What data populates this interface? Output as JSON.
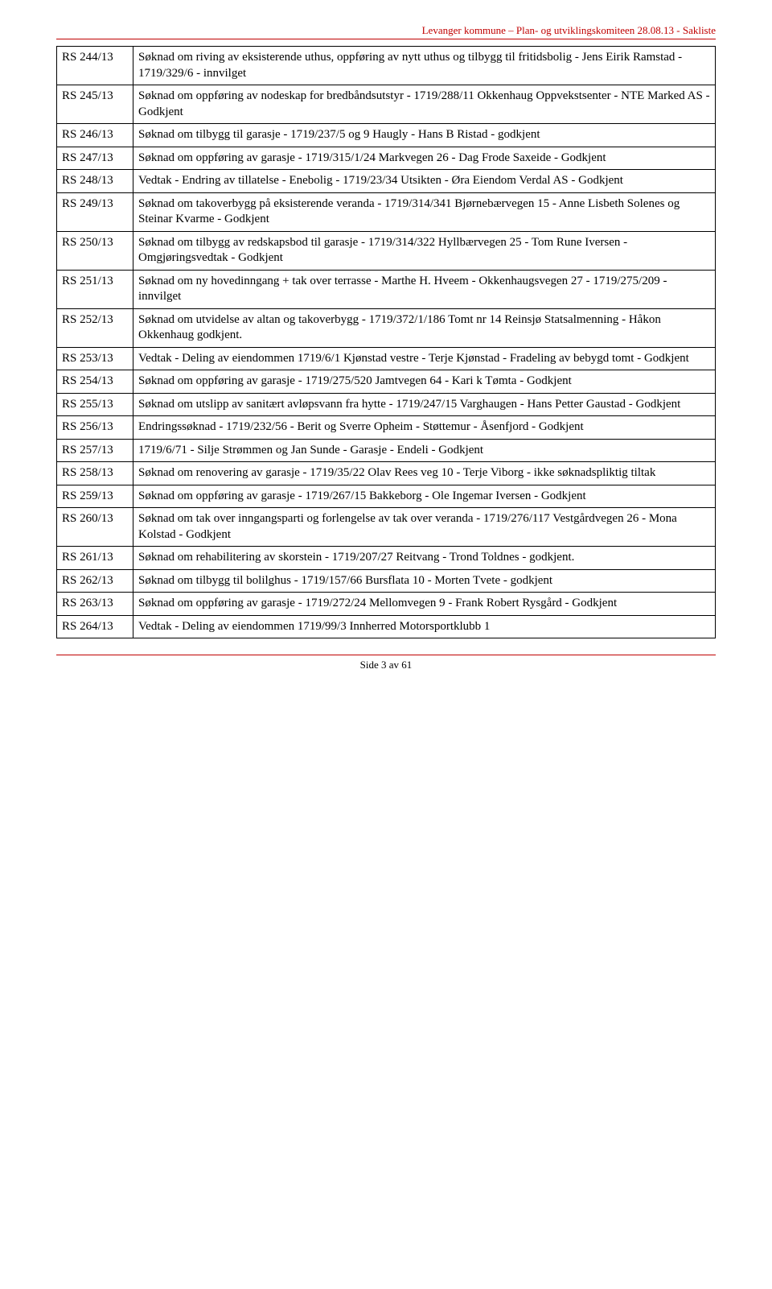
{
  "header_text": "Levanger kommune – Plan- og utviklingskomiteen 28.08.13 - Sakliste",
  "footer_text": "Side 3 av 61",
  "rows": [
    {
      "ref": "RS 244/13",
      "desc": "Søknad om riving av eksisterende uthus, oppføring av nytt uthus og tilbygg til fritidsbolig - Jens Eirik Ramstad - 1719/329/6 - innvilget"
    },
    {
      "ref": "RS 245/13",
      "desc": "Søknad om oppføring av nodeskap for bredbåndsutstyr - 1719/288/11 Okkenhaug Oppvekstsenter - NTE Marked AS - Godkjent"
    },
    {
      "ref": "RS 246/13",
      "desc": "Søknad om tilbygg til garasje - 1719/237/5 og 9 Haugly - Hans B Ristad - godkjent"
    },
    {
      "ref": "RS 247/13",
      "desc": "Søknad om oppføring av garasje - 1719/315/1/24 Markvegen 26 - Dag Frode Saxeide - Godkjent"
    },
    {
      "ref": "RS 248/13",
      "desc": "Vedtak - Endring av tillatelse - Enebolig - 1719/23/34 Utsikten - Øra Eiendom Verdal AS - Godkjent"
    },
    {
      "ref": "RS 249/13",
      "desc": "Søknad om takoverbygg på eksisterende veranda - 1719/314/341 Bjørnebærvegen 15 - Anne Lisbeth Solenes og Steinar Kvarme - Godkjent"
    },
    {
      "ref": "RS 250/13",
      "desc": "Søknad om tilbygg av redskapsbod til garasje - 1719/314/322 Hyllbærvegen 25 - Tom Rune Iversen - Omgjøringsvedtak - Godkjent"
    },
    {
      "ref": "RS 251/13",
      "desc": "Søknad om ny hovedinngang + tak over terrasse  - Marthe H. Hveem - Okkenhaugsvegen 27 - 1719/275/209 - innvilget"
    },
    {
      "ref": "RS 252/13",
      "desc": "Søknad om utvidelse av altan og takoverbygg - 1719/372/1/186 Tomt nr 14 Reinsjø Statsalmenning - Håkon Okkenhaug  godkjent."
    },
    {
      "ref": "RS 253/13",
      "desc": "Vedtak - Deling av eiendommen 1719/6/1 Kjønstad vestre - Terje Kjønstad - Fradeling av bebygd tomt - Godkjent"
    },
    {
      "ref": "RS 254/13",
      "desc": "Søknad om oppføring av garasje - 1719/275/520 Jamtvegen 64 - Kari k Tømta - Godkjent"
    },
    {
      "ref": "RS 255/13",
      "desc": "Søknad om utslipp av sanitært avløpsvann fra hytte - 1719/247/15 Varghaugen - Hans Petter Gaustad - Godkjent"
    },
    {
      "ref": "RS 256/13",
      "desc": "Endringssøknad - 1719/232/56 - Berit og Sverre Opheim - Støttemur - Åsenfjord - Godkjent"
    },
    {
      "ref": "RS 257/13",
      "desc": "1719/6/71 - Silje Strømmen og Jan Sunde - Garasje - Endeli - Godkjent"
    },
    {
      "ref": "RS 258/13",
      "desc": "Søknad om renovering av garasje  - 1719/35/22 Olav Rees veg 10 - Terje Viborg - ikke søknadspliktig tiltak"
    },
    {
      "ref": "RS 259/13",
      "desc": "Søknad om oppføring av garasje - 1719/267/15 Bakkeborg - Ole Ingemar Iversen - Godkjent"
    },
    {
      "ref": "RS 260/13",
      "desc": "Søknad om tak over inngangsparti og forlengelse av tak over veranda - 1719/276/117 Vestgårdvegen 26 - Mona Kolstad - Godkjent"
    },
    {
      "ref": "RS 261/13",
      "desc": "Søknad om rehabilitering av skorstein - 1719/207/27 Reitvang - Trond Toldnes - godkjent."
    },
    {
      "ref": "RS 262/13",
      "desc": "Søknad om tilbygg til bolilghus - 1719/157/66 Bursflata 10 - Morten Tvete - godkjent"
    },
    {
      "ref": "RS 263/13",
      "desc": "Søknad om oppføring av garasje - 1719/272/24 Mellomvegen 9 - Frank Robert Rysgård - Godkjent"
    },
    {
      "ref": "RS 264/13",
      "desc": "Vedtak - Deling av eiendommen 1719/99/3 Innherred Motorsportklubb 1"
    }
  ]
}
